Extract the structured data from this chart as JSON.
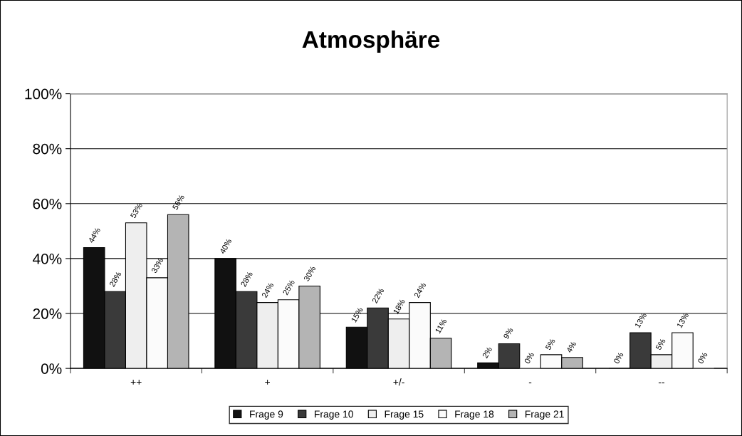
{
  "chart_data": {
    "type": "bar",
    "title": "Atmosphäre",
    "categories": [
      "++",
      "+",
      "+/-",
      "-",
      "--"
    ],
    "series": [
      {
        "name": "Frage 9",
        "color": "#111111",
        "values": [
          44,
          40,
          15,
          2,
          0
        ],
        "value_labels": [
          "44%",
          "40%",
          "15%",
          "2%",
          "0%"
        ]
      },
      {
        "name": "Frage 10",
        "color": "#3a3a3a",
        "values": [
          28,
          28,
          22,
          9,
          13
        ],
        "value_labels": [
          "28%",
          "28%",
          "22%",
          "9%",
          "13%"
        ]
      },
      {
        "name": "Frage 15",
        "color": "#eeeeee",
        "values": [
          53,
          24,
          18,
          0,
          5
        ],
        "value_labels": [
          "53%",
          "24%",
          "18%",
          "0%",
          "5%"
        ]
      },
      {
        "name": "Frage 18",
        "color": "#fbfbfb",
        "values": [
          33,
          25,
          24,
          5,
          13
        ],
        "value_labels": [
          "33%",
          "25%",
          "24%",
          "5%",
          "13%"
        ]
      },
      {
        "name": "Frage 21",
        "color": "#b4b4b4",
        "values": [
          56,
          30,
          11,
          4,
          0
        ],
        "value_labels": [
          "56%",
          "30%",
          "11%",
          "4%",
          "0%"
        ]
      }
    ],
    "ylim": [
      0,
      100
    ],
    "yticks": [
      {
        "value": 0,
        "label": "0%"
      },
      {
        "value": 20,
        "label": "20%"
      },
      {
        "value": 40,
        "label": "40%"
      },
      {
        "value": 60,
        "label": "60%"
      },
      {
        "value": 80,
        "label": "80%"
      },
      {
        "value": 100,
        "label": "100%"
      }
    ],
    "grid": "y",
    "legend": "bottom"
  }
}
